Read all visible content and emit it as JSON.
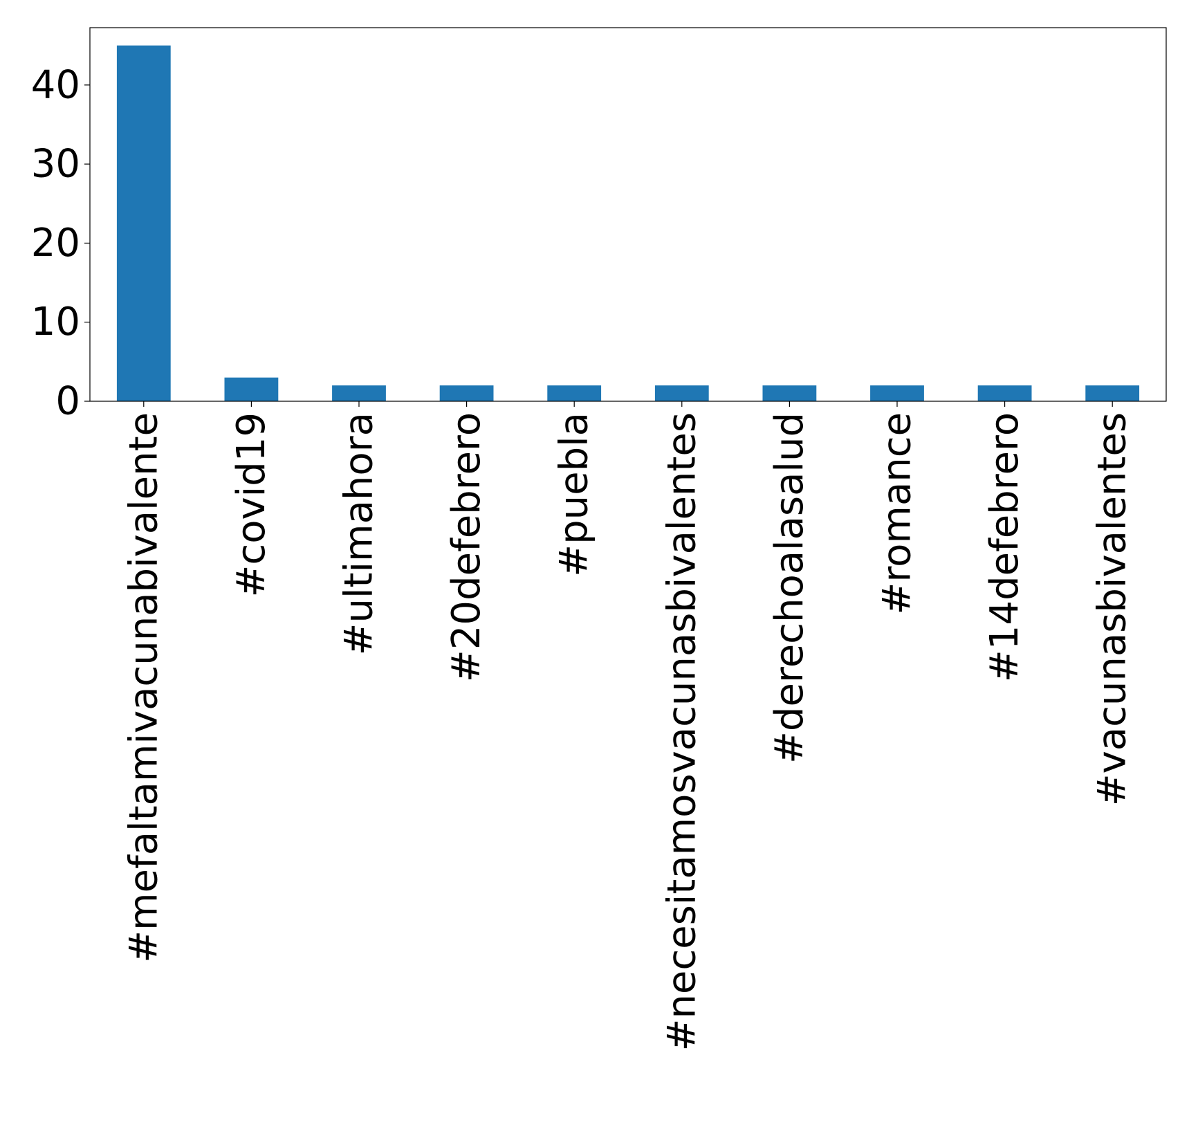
{
  "chart_data": {
    "type": "bar",
    "title": "",
    "xlabel": "",
    "ylabel": "",
    "categories": [
      "#mefaltamivacunabivalente",
      "#covid19",
      "#ultimahora",
      "#20defebrero",
      "#puebla",
      "#necesitamosvacunasbivalentes",
      "#derechoalasalud",
      "#romance",
      "#14defebrero",
      "#vacunasbivalentes"
    ],
    "values": [
      45,
      3,
      2,
      2,
      2,
      2,
      2,
      2,
      2,
      2
    ],
    "ylim": [
      0,
      47.25
    ],
    "yticks": [
      0,
      10,
      20,
      30,
      40
    ],
    "grid": false,
    "legend": "none",
    "bar_color": "#1f77b4"
  }
}
